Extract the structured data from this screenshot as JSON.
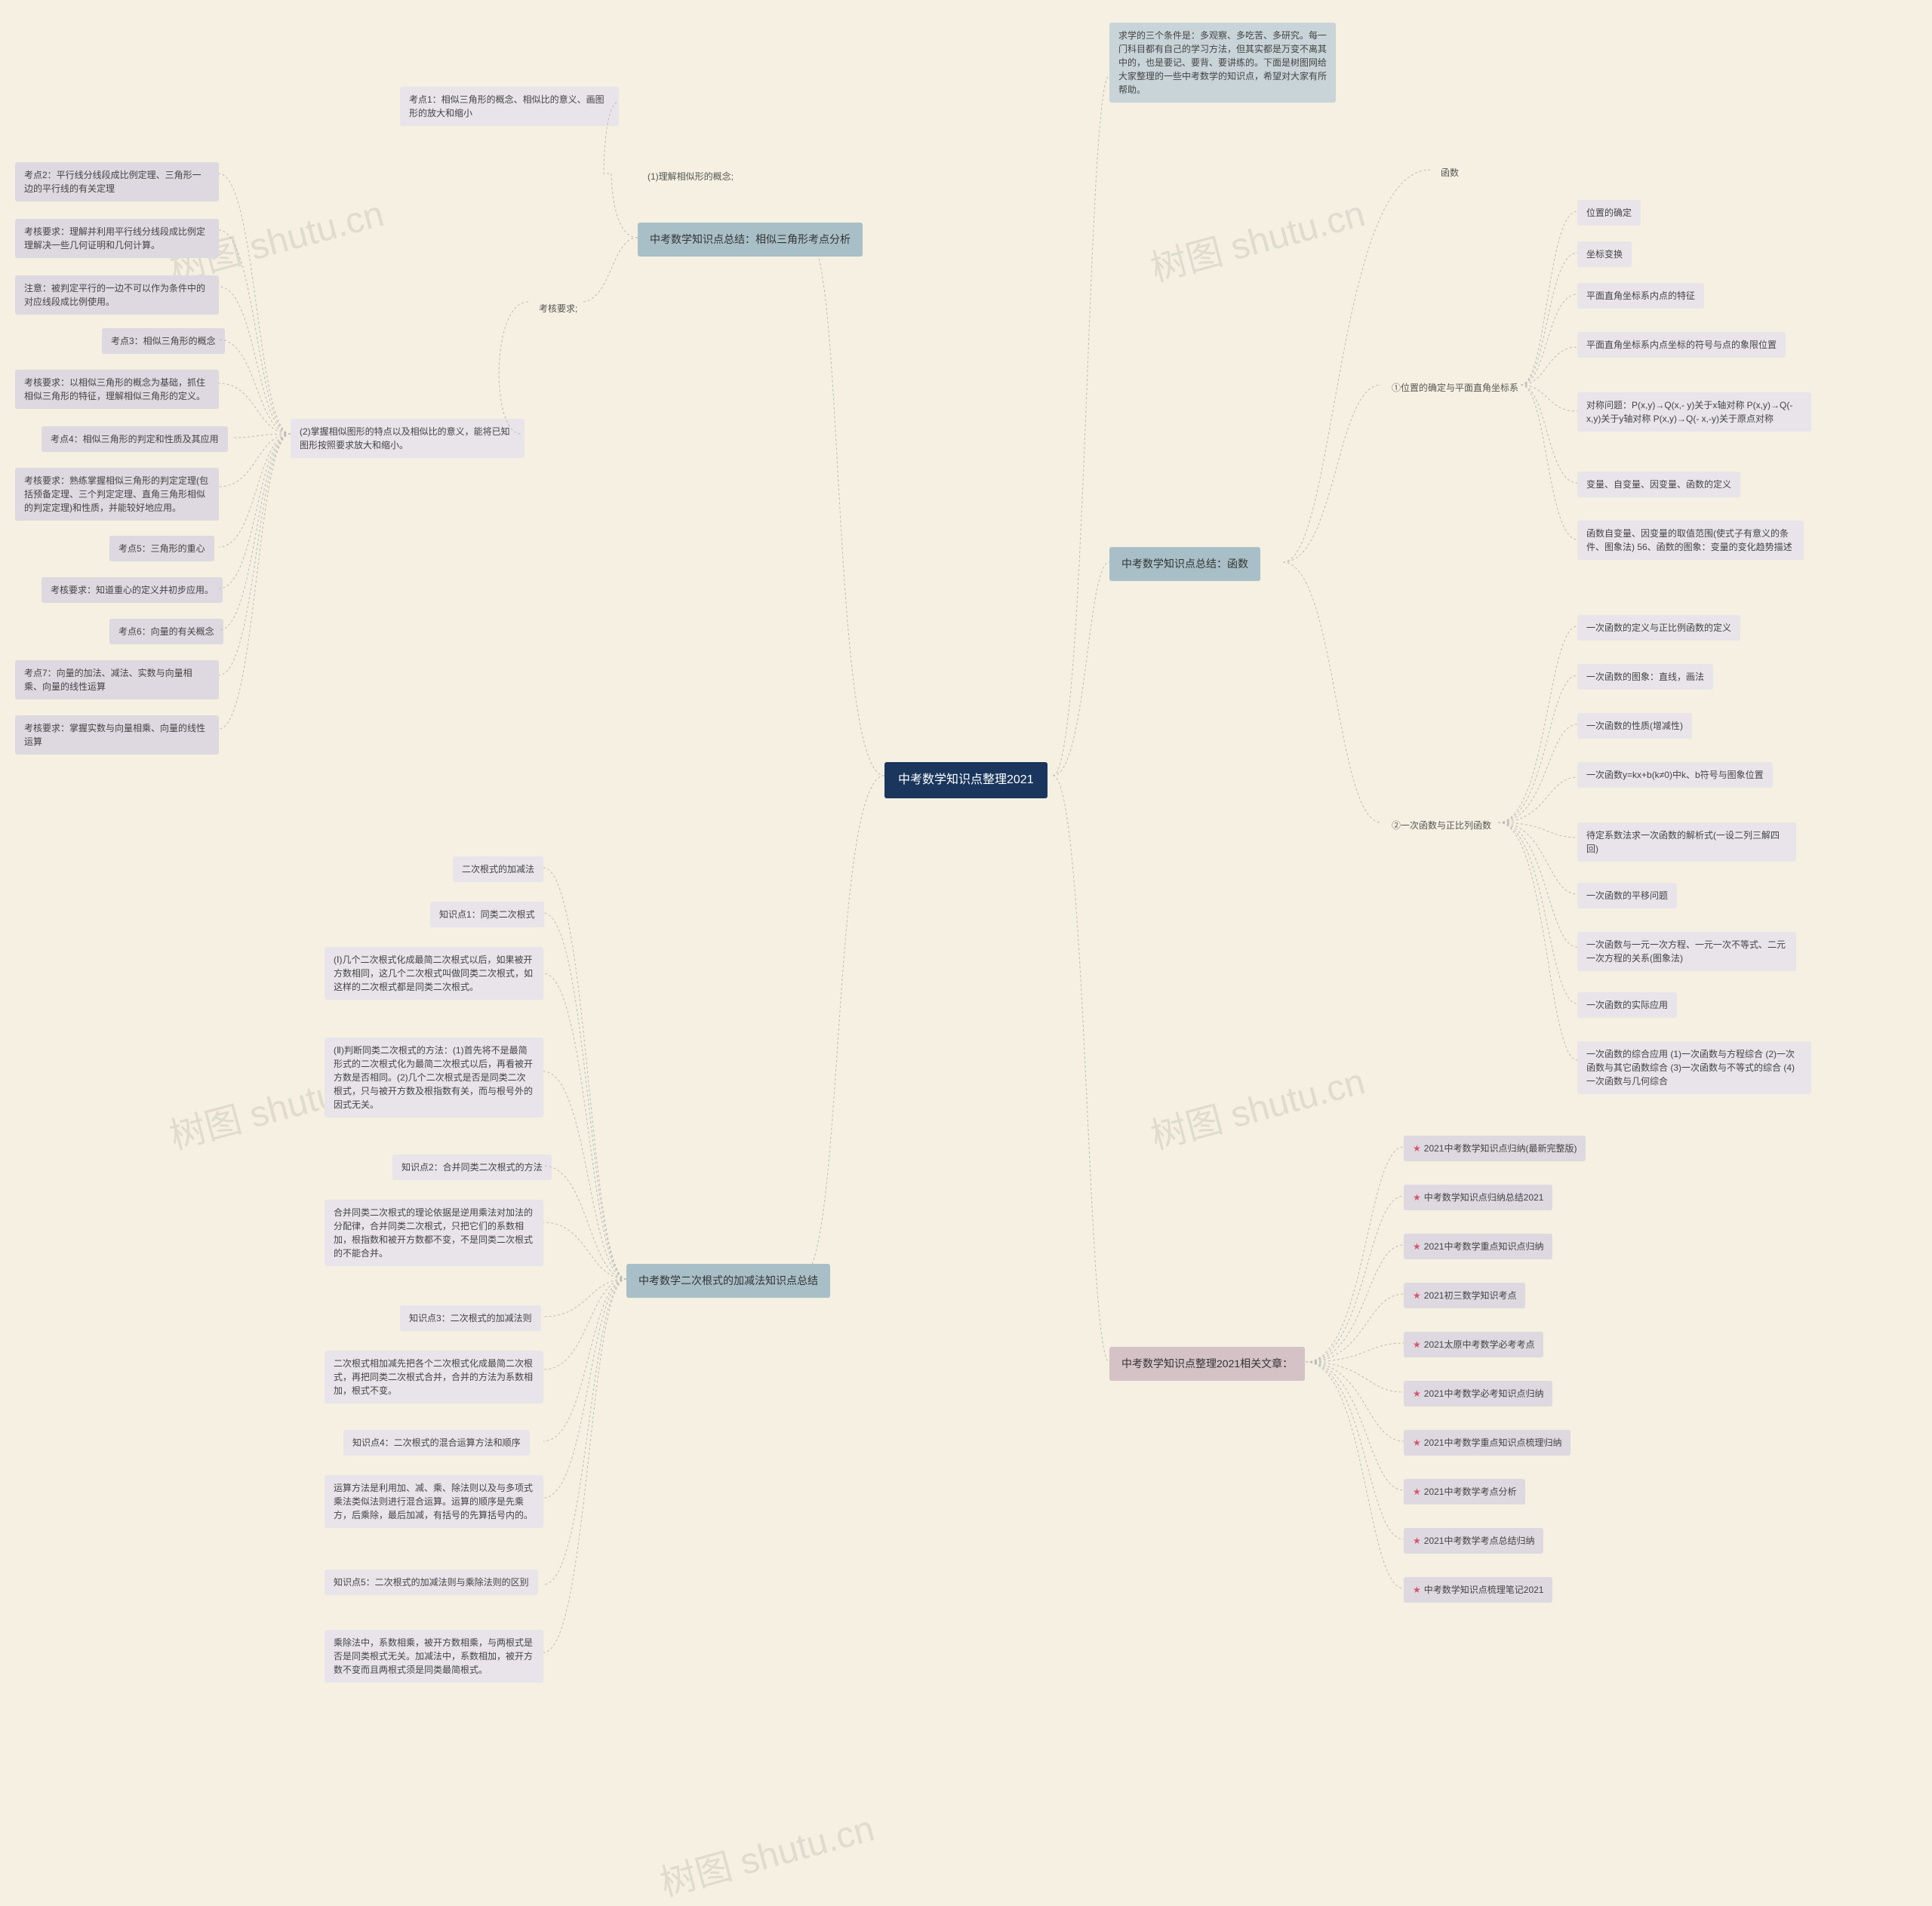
{
  "root_title": "中考数学知识点整理2021",
  "intro_text": "求学的三个条件是：多观察、多吃苦、多研究。每一门科目都有自己的学习方法，但其实都是万变不离其中的，也是要记、要背、要讲练的。下面是树图网给大家整理的一些中考数学的知识点，希望对大家有所帮助。",
  "branches": {
    "similar": {
      "title": "中考数学知识点总结：相似三角形考点分析",
      "kp1": "考点1：相似三角形的概念、相似比的意义、画图形的放大和缩小",
      "understand": "(1)理解相似形的概念;",
      "master": "(2)掌握相似图形的特点以及相似比的意义，能将已知图形按照要求放大和缩小。",
      "req_label": "考核要求;",
      "sub": {
        "kp2": "考点2：平行线分线段成比例定理、三角形一边的平行线的有关定理",
        "kp2_req": "考核要求：理解并利用平行线分线段成比例定理解决一些几何证明和几何计算。",
        "kp2_note": "注意：被判定平行的一边不可以作为条件中的对应线段成比例使用。",
        "kp3": "考点3：相似三角形的概念",
        "kp3_req": "考核要求：以相似三角形的概念为基础，抓住相似三角形的特征，理解相似三角形的定义。",
        "kp4": "考点4：相似三角形的判定和性质及其应用",
        "kp4_req": "考核要求：熟练掌握相似三角形的判定定理(包括预备定理、三个判定定理、直角三角形相似的判定定理)和性质，并能较好地应用。",
        "kp5": "考点5：三角形的重心",
        "kp5_req": "考核要求：知道重心的定义并初步应用。",
        "kp6": "考点6：向量的有关概念",
        "kp7": "考点7：向量的加法、减法、实数与向量相乘、向量的线性运算",
        "kp7_req": "考核要求：掌握实数与向量相乘、向量的线性运算"
      }
    },
    "radical": {
      "title": "中考数学二次根式的加减法知识点总结",
      "sub": {
        "r1": "二次根式的加减法",
        "r2": "知识点1：同类二次根式",
        "r2a": "(Ⅰ)几个二次根式化成最简二次根式以后，如果被开方数相同，这几个二次根式叫做同类二次根式，如这样的二次根式都是同类二次根式。",
        "r2b": "(Ⅱ)判断同类二次根式的方法：(1)首先将不是最简形式的二次根式化为最简二次根式以后，再看被开方数是否相同。(2)几个二次根式是否是同类二次根式，只与被开方数及根指数有关，而与根号外的因式无关。",
        "r3": "知识点2：合并同类二次根式的方法",
        "r3a": "合并同类二次根式的理论依据是逆用乘法对加法的分配律，合并同类二次根式，只把它们的系数相加，根指数和被开方数都不变，不是同类二次根式的不能合并。",
        "r4": "知识点3：二次根式的加减法则",
        "r4a": "二次根式相加减先把各个二次根式化成最简二次根式，再把同类二次根式合并，合并的方法为系数相加，根式不变。",
        "r5": "知识点4：二次根式的混合运算方法和顺序",
        "r5a": "运算方法是利用加、减、乘、除法则以及与多项式乘法类似法则进行混合运算。运算的顺序是先乘方，后乘除，最后加减，有括号的先算括号内的。",
        "r6": "知识点5：二次根式的加减法则与乘除法则的区别",
        "r6a": "乘除法中，系数相乘，被开方数相乘，与两根式是否是同类根式无关。加减法中，系数相加，被开方数不变而且两根式须是同类最简根式。"
      }
    },
    "function": {
      "title": "中考数学知识点总结：函数",
      "func_label": "函数",
      "sec1_title": "①位置的确定与平面直角坐标系",
      "sec1": {
        "a": "位置的确定",
        "b": "坐标变换",
        "c": "平面直角坐标系内点的特征",
        "d": "平面直角坐标系内点坐标的符号与点的象限位置",
        "e": "对称问题：P(x,y)→Q(x,- y)关于x轴对称 P(x,y)→Q(- x,y)关于y轴对称 P(x,y)→Q(- x,-y)关于原点对称",
        "f": "变量、自变量、因变量、函数的定义",
        "g": "函数自变量、因变量的取值范围(使式子有意义的条件、图象法) 56、函数的图象：变量的变化趋势描述"
      },
      "sec2_title": "②一次函数与正比列函数",
      "sec2": {
        "a": "一次函数的定义与正比例函数的定义",
        "b": "一次函数的图象：直线，画法",
        "c": "一次函数的性质(增减性)",
        "d": "一次函数y=kx+b(k≠0)中k、b符号与图象位置",
        "e": "待定系数法求一次函数的解析式(一设二列三解四回)",
        "f": "一次函数的平移问题",
        "g": "一次函数与一元一次方程、一元一次不等式、二元一次方程的关系(图象法)",
        "h": "一次函数的实际应用",
        "i": "一次函数的综合应用 (1)一次函数与方程综合 (2)一次函数与其它函数综合 (3)一次函数与不等式的综合 (4)一次函数与几何综合"
      }
    },
    "related": {
      "title": "中考数学知识点整理2021相关文章：",
      "items": [
        "2021中考数学知识点归纳(最新完整版)",
        "中考数学知识点归纳总结2021",
        "2021中考数学重点知识点归纳",
        "2021初三数学知识考点",
        "2021太原中考数学必考考点",
        "2021中考数学必考知识点归纳",
        "2021中考数学重点知识点梳理归纳",
        "2021中考数学考点分析",
        "2021中考数学考点总结归纳",
        "中考数学知识点梳理笔记2021"
      ]
    }
  },
  "watermarks": [
    "树图 shutu.cn",
    "树图 shutu.cn",
    "树图 shutu.cn",
    "树图 shutu.cn",
    "树图 shutu.cn"
  ]
}
